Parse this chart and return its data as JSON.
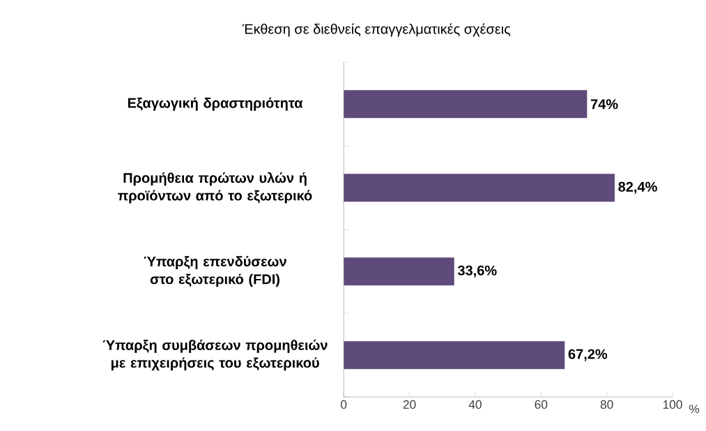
{
  "chart_data": {
    "type": "bar",
    "orientation": "horizontal",
    "title": "Έκθεση σε διεθνείς επαγγελματικές σχέσεις",
    "categories": [
      "Εξαγωγική δραστηριότητα",
      "Προμήθεια πρώτων υλών ή προϊόντων από το εξωτερικό",
      "Ύπαρξη επενδύσεων στο εξωτερικό (FDI)",
      "Ύπαρξη συμβάσεων προμηθειών με επιχειρήσεις του εξωτερικού"
    ],
    "values": [
      74,
      82.4,
      33.6,
      67.2
    ],
    "value_labels": [
      "74%",
      "82,4%",
      "33,6%",
      "67,2%"
    ],
    "color": "#5e4a7b",
    "xlabel": "%",
    "xlim": [
      0,
      100
    ],
    "xticks": [
      0,
      20,
      40,
      60,
      80,
      100
    ],
    "grid": false
  }
}
